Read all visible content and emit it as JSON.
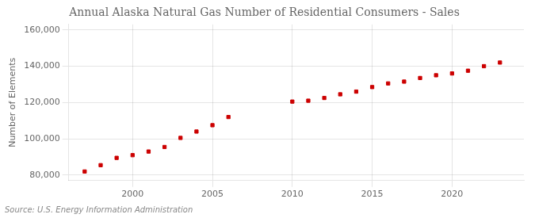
{
  "chart_data": {
    "type": "scatter",
    "title": "Annual Alaska Natural Gas Number of Residential Consumers - Sales",
    "y_label": "Number of Elements",
    "source": "Source: U.S. Energy Information Administration",
    "x": [
      1997,
      1998,
      1999,
      2000,
      2001,
      2002,
      2003,
      2004,
      2005,
      2006,
      2010,
      2011,
      2012,
      2013,
      2014,
      2015,
      2016,
      2017,
      2018,
      2019,
      2020,
      2021,
      2022,
      2023
    ],
    "values": [
      82000,
      85500,
      89500,
      91000,
      93000,
      95500,
      100500,
      104000,
      107500,
      112000,
      120500,
      121000,
      122500,
      124500,
      126000,
      128500,
      130500,
      131500,
      133500,
      135000,
      136000,
      137500,
      140000,
      142000
    ],
    "color": "#cc0000",
    "marker": "square",
    "xlim": [
      1996,
      2024.5
    ],
    "xticks": [
      2000,
      2005,
      2010,
      2015,
      2020
    ],
    "ylim": [
      77000,
      163000
    ],
    "yticks": [
      {
        "value": 80000,
        "label": "80,000"
      },
      {
        "value": 100000,
        "label": "100,000"
      },
      {
        "value": 120000,
        "label": "120,000"
      },
      {
        "value": 140000,
        "label": "140,000"
      },
      {
        "value": 160000,
        "label": "160,000"
      }
    ],
    "grid": true
  }
}
